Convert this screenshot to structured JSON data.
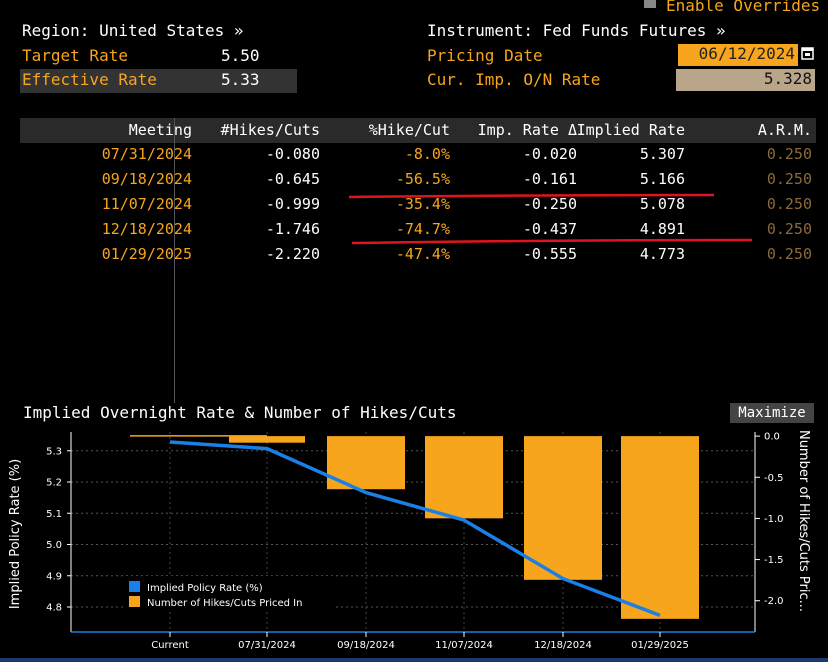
{
  "header": {
    "enable_overrides": "Enable Overrides",
    "region": "Region: United States »",
    "instrument": "Instrument: Fed Funds Futures »",
    "target_rate_label": "Target Rate",
    "target_rate_value": "5.50",
    "effective_rate_label": "Effective Rate",
    "effective_rate_value": "5.33",
    "pricing_date_label": "Pricing Date",
    "pricing_date_value": "06/12/2024",
    "cur_imp_label": "Cur. Imp. O/N Rate",
    "cur_imp_value": "5.328"
  },
  "table": {
    "columns": [
      "Meeting",
      "#Hikes/Cuts",
      "%Hike/Cut",
      "Imp. Rate Δ",
      "Implied Rate",
      "A.R.M."
    ],
    "rows": [
      {
        "meeting": "07/31/2024",
        "hikes": "-0.080",
        "pct": "-8.0%",
        "delta": "-0.020",
        "implied": "5.307",
        "arm": "0.250"
      },
      {
        "meeting": "09/18/2024",
        "hikes": "-0.645",
        "pct": "-56.5%",
        "delta": "-0.161",
        "implied": "5.166",
        "arm": "0.250"
      },
      {
        "meeting": "11/07/2024",
        "hikes": "-0.999",
        "pct": "-35.4%",
        "delta": "-0.250",
        "implied": "5.078",
        "arm": "0.250"
      },
      {
        "meeting": "12/18/2024",
        "hikes": "-1.746",
        "pct": "-74.7%",
        "delta": "-0.437",
        "implied": "4.891",
        "arm": "0.250"
      },
      {
        "meeting": "01/29/2025",
        "hikes": "-2.220",
        "pct": "-47.4%",
        "delta": "-0.555",
        "implied": "4.773",
        "arm": "0.250"
      }
    ]
  },
  "chart_panel": {
    "title": "Implied Overnight Rate & Number of Hikes/Cuts",
    "maximize": "Maximize"
  },
  "colors": {
    "orange": "#f7a51c",
    "blue": "#1a7fe6",
    "red_annotation": "#e0141e"
  },
  "chart_data": {
    "type": "bar",
    "title": "Implied Overnight Rate & Number of Hikes/Cuts",
    "categories": [
      "Current",
      "07/31/2024",
      "09/18/2024",
      "11/07/2024",
      "12/18/2024",
      "01/29/2025"
    ],
    "series": [
      {
        "name": "Implied Policy Rate (%)",
        "type": "line",
        "axis": "left",
        "values": [
          5.328,
          5.307,
          5.166,
          5.078,
          4.891,
          4.773
        ]
      },
      {
        "name": "Number of Hikes/Cuts Priced In",
        "type": "bar",
        "axis": "right",
        "values": [
          0,
          -0.08,
          -0.645,
          -0.999,
          -1.746,
          -2.22
        ]
      }
    ],
    "ylabel": "Implied Policy Rate (%)",
    "y2label": "Number of Hikes/Cuts Pric...",
    "yticks": [
      "5.3",
      "5.2",
      "5.1",
      "5.0",
      "4.9",
      "4.8"
    ],
    "y2ticks": [
      "0.0",
      "-0.5",
      "-1.0",
      "-1.5",
      "-2.0"
    ],
    "ylim": [
      4.72,
      5.36
    ],
    "y2lim": [
      -2.38,
      0.05
    ],
    "legend": [
      "Implied Policy Rate (%)",
      "Number of Hikes/Cuts Priced In"
    ],
    "legend_position": "bottom-left"
  }
}
